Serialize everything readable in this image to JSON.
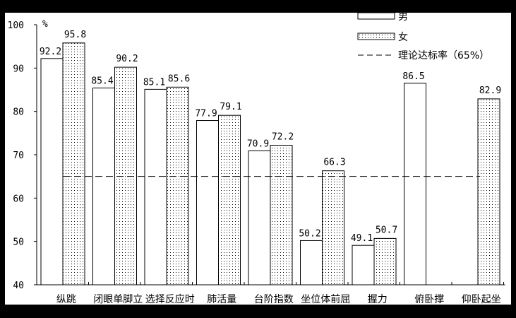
{
  "chart_data": {
    "type": "bar",
    "title": "",
    "xlabel": "",
    "ylabel": "%",
    "ylim": [
      40,
      100
    ],
    "yticks": [
      40,
      50,
      60,
      70,
      80,
      90,
      100
    ],
    "grid": false,
    "legend_position": "top-right",
    "categories": [
      "纵跳",
      "闭眼单脚立",
      "选择反应时",
      "肺活量",
      "台阶指数",
      "坐位体前屈",
      "握力",
      "俯卧撑",
      "仰卧起坐"
    ],
    "series": [
      {
        "name": "男",
        "pattern": "white",
        "values": [
          92.2,
          85.4,
          85.1,
          77.9,
          70.9,
          50.2,
          49.1,
          86.5,
          null
        ]
      },
      {
        "name": "女",
        "pattern": "dotted",
        "values": [
          95.8,
          90.2,
          85.6,
          79.1,
          72.2,
          66.3,
          50.7,
          null,
          82.9
        ]
      }
    ],
    "reference_line": {
      "name": "理论达标率（65%）",
      "value": 65,
      "style": "dashed"
    }
  },
  "legend": {
    "male": "男",
    "female": "女",
    "reference": "理论达标率（65%）"
  },
  "axis": {
    "unit": "%"
  },
  "colors": {
    "border": "#000000",
    "background": "#ffffff",
    "bar_fill": "#ffffff",
    "dot": "#000000"
  }
}
